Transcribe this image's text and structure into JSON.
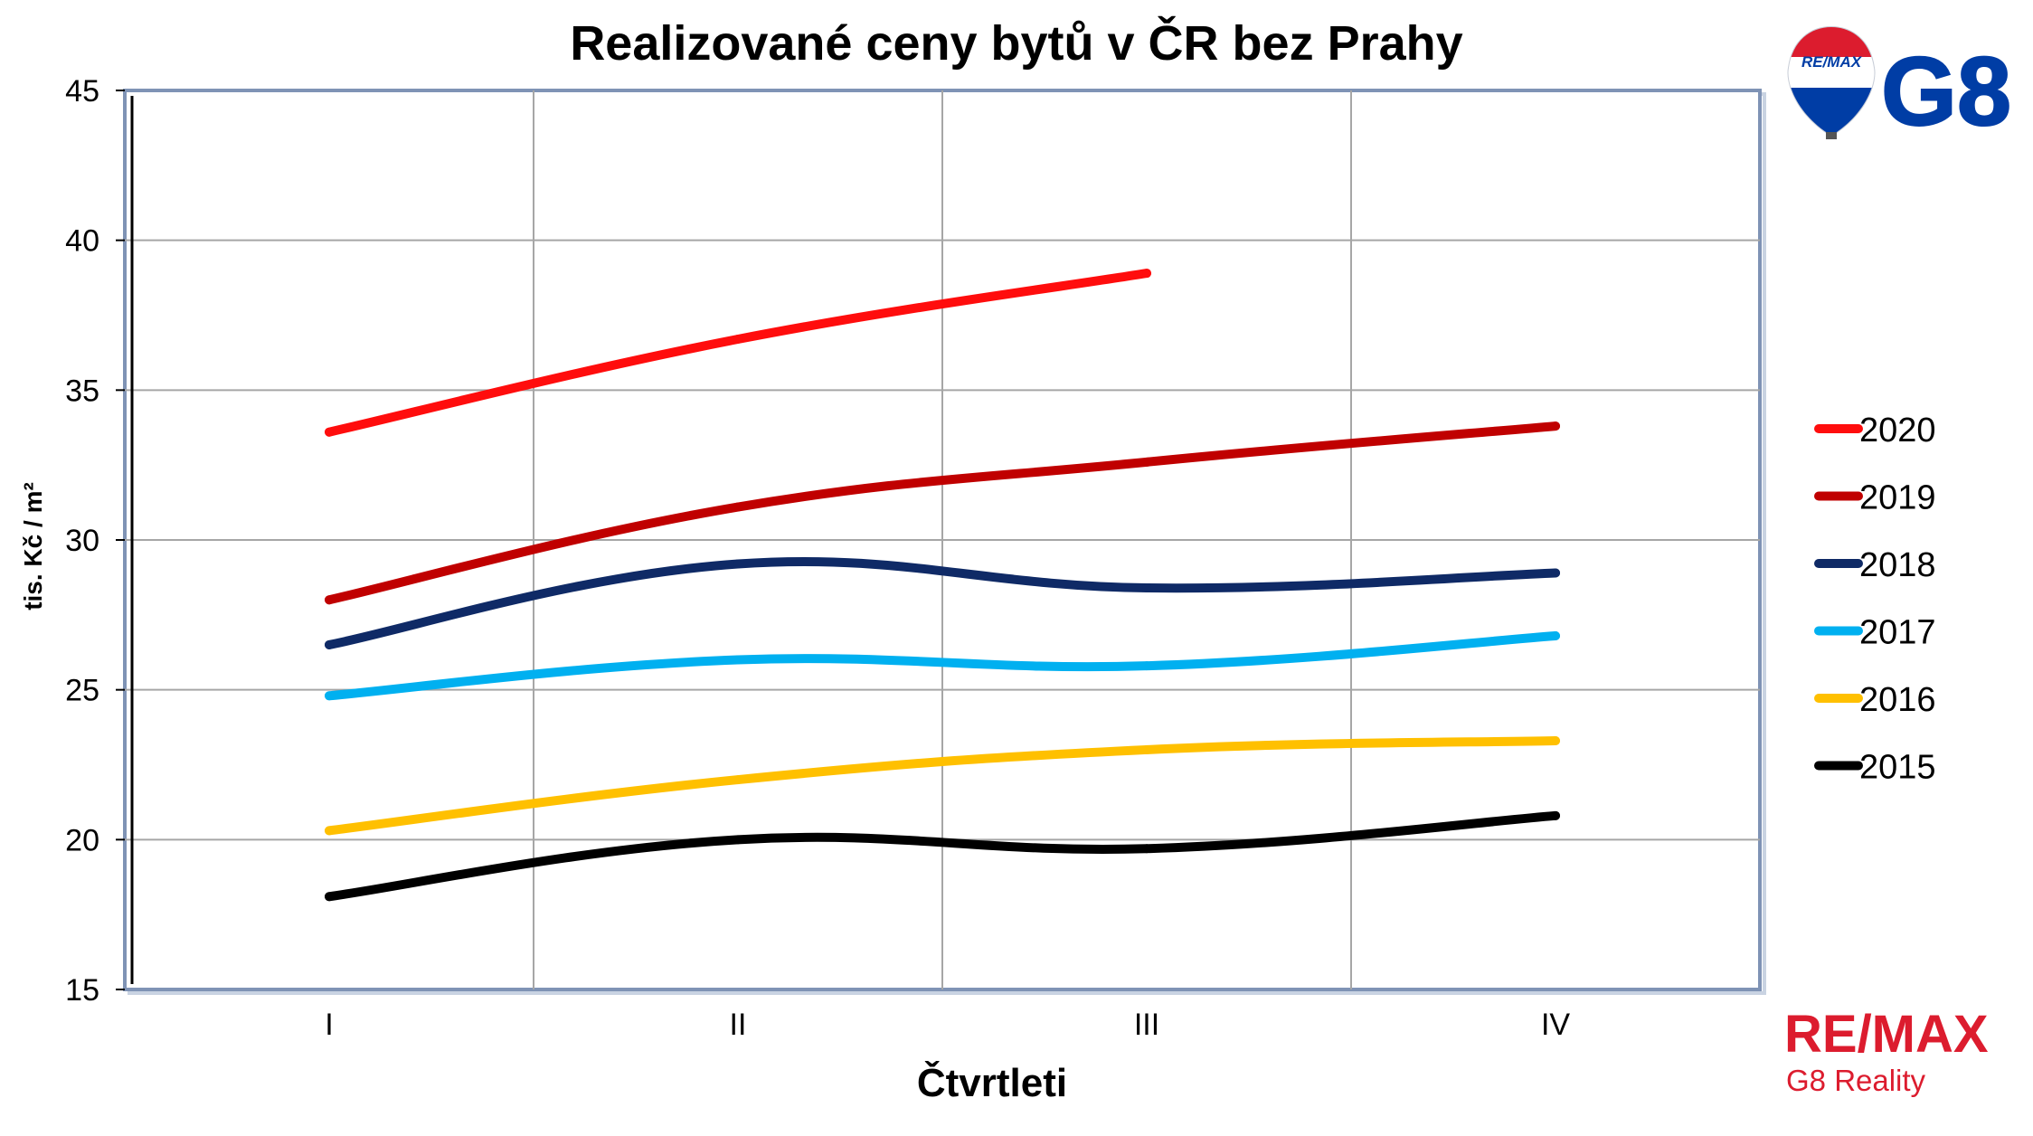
{
  "chart_data": {
    "type": "line",
    "title": "Realizované ceny bytů v ČR bez Prahy",
    "xlabel": "Čtvrtleti",
    "ylabel": "tis. Kč / m²",
    "categories": [
      "I",
      "II",
      "III",
      "IV"
    ],
    "ylim": [
      15,
      45
    ],
    "yticks": [
      15,
      20,
      25,
      30,
      35,
      40,
      45
    ],
    "grid": true,
    "legend_position": "right",
    "series": [
      {
        "name": "2020",
        "color": "#ff0d0d",
        "values": [
          33.6,
          36.7,
          38.9,
          null
        ]
      },
      {
        "name": "2019",
        "color": "#c00000",
        "values": [
          28.0,
          31.1,
          32.6,
          33.8
        ]
      },
      {
        "name": "2018",
        "color": "#0f2a66",
        "values": [
          26.5,
          29.2,
          28.4,
          28.9
        ]
      },
      {
        "name": "2017",
        "color": "#00b0f0",
        "values": [
          24.8,
          26.0,
          25.8,
          26.8
        ]
      },
      {
        "name": "2016",
        "color": "#ffc000",
        "values": [
          20.3,
          22.0,
          23.0,
          23.3
        ]
      },
      {
        "name": "2015",
        "color": "#000000",
        "values": [
          18.1,
          20.0,
          19.7,
          20.8
        ]
      }
    ]
  },
  "branding": {
    "balloon_text": "RE/MAX",
    "g8_text": "G8",
    "remax_text": "RE/MAX",
    "reality_text": "G8 Reality",
    "remax_red": "#dc1c2e",
    "remax_blue": "#003da5"
  }
}
